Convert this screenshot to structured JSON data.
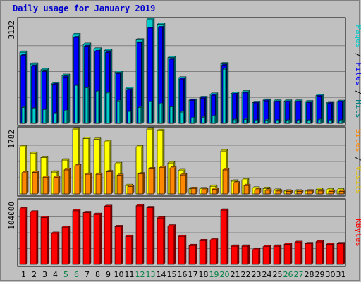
{
  "title": "Daily usage for January 2019",
  "colors": {
    "hits": "#00cccc",
    "files": "#0000ff",
    "pages": "#00cccc",
    "visits": "#ffff00",
    "sites": "#ff8800",
    "kbytes": "#ff0000",
    "weekend_tick": "#008040",
    "weekday_tick": "#000000",
    "panel_bg": "#c0c0c0",
    "grid": "#808080"
  },
  "chart_data": [
    {
      "type": "bar",
      "name": "hits-files-pages",
      "categories": [
        "1",
        "2",
        "3",
        "4",
        "5",
        "6",
        "7",
        "8",
        "9",
        "10",
        "11",
        "12",
        "13",
        "14",
        "15",
        "16",
        "17",
        "18",
        "19",
        "20",
        "21",
        "22",
        "23",
        "24",
        "25",
        "26",
        "27",
        "28",
        "29",
        "30",
        "31"
      ],
      "weekend_days": [
        "5",
        "6",
        "12",
        "13",
        "19",
        "20",
        "26",
        "27"
      ],
      "ymax_label": "3132",
      "ylim": [
        0,
        3132
      ],
      "series_labels": [
        "Pages",
        "Files",
        "Hits"
      ],
      "series": [
        {
          "name": "Hits",
          "values": [
            2150,
            1790,
            1620,
            1190,
            1450,
            2680,
            2390,
            2245,
            2200,
            1550,
            1050,
            2520,
            3132,
            2990,
            1990,
            1370,
            700,
            780,
            880,
            1800,
            900,
            950,
            630,
            700,
            670,
            670,
            670,
            650,
            840,
            620,
            660
          ]
        },
        {
          "name": "Files",
          "values": [
            2050,
            1730,
            1570,
            1180,
            1400,
            2600,
            2330,
            2180,
            2140,
            1500,
            1010,
            2440,
            2880,
            2900,
            1940,
            1340,
            690,
            760,
            850,
            1760,
            880,
            920,
            620,
            680,
            650,
            650,
            650,
            630,
            820,
            600,
            650
          ]
        },
        {
          "name": "Pages",
          "values": [
            480,
            450,
            420,
            300,
            380,
            1150,
            1080,
            960,
            920,
            680,
            360,
            480,
            650,
            590,
            500,
            340,
            160,
            180,
            220,
            1640,
            110,
            120,
            90,
            100,
            90,
            90,
            90,
            90,
            110,
            90,
            90
          ]
        }
      ],
      "grid": true
    },
    {
      "type": "bar",
      "name": "visits-sites",
      "categories": [
        "1",
        "2",
        "3",
        "4",
        "5",
        "6",
        "7",
        "8",
        "9",
        "10",
        "11",
        "12",
        "13",
        "14",
        "15",
        "16",
        "17",
        "18",
        "19",
        "20",
        "21",
        "22",
        "23",
        "24",
        "25",
        "26",
        "27",
        "28",
        "29",
        "30",
        "31"
      ],
      "ymax_label": "1782",
      "ylim": [
        0,
        1782
      ],
      "series_labels": [
        "Sites",
        "Visits"
      ],
      "series": [
        {
          "name": "Visits",
          "values": [
            1290,
            1120,
            1000,
            600,
            930,
            1782,
            1520,
            1500,
            1430,
            830,
            230,
            1290,
            1782,
            1740,
            850,
            640,
            140,
            140,
            210,
            1180,
            350,
            380,
            160,
            150,
            100,
            80,
            80,
            80,
            120,
            110,
            110
          ]
        },
        {
          "name": "Sites",
          "values": [
            580,
            590,
            460,
            450,
            660,
            770,
            540,
            540,
            610,
            510,
            200,
            550,
            690,
            720,
            710,
            520,
            150,
            110,
            130,
            660,
            300,
            230,
            110,
            100,
            80,
            70,
            70,
            80,
            80,
            70,
            70
          ]
        }
      ],
      "grid": true
    },
    {
      "type": "bar",
      "name": "kbytes",
      "categories": [
        "1",
        "2",
        "3",
        "4",
        "5",
        "6",
        "7",
        "8",
        "9",
        "10",
        "11",
        "12",
        "13",
        "14",
        "15",
        "16",
        "17",
        "18",
        "19",
        "20",
        "21",
        "22",
        "23",
        "24",
        "25",
        "26",
        "27",
        "28",
        "29",
        "30",
        "31"
      ],
      "ymax_label": "104000",
      "ylim": [
        0,
        104000
      ],
      "series_labels": [
        "KBytes"
      ],
      "series": [
        {
          "name": "KBytes",
          "values": [
            91000,
            86000,
            77000,
            51000,
            61000,
            88000,
            85000,
            82000,
            95000,
            62000,
            46000,
            96000,
            93000,
            76000,
            63000,
            46000,
            31000,
            39000,
            40000,
            89000,
            30000,
            30000,
            24000,
            29000,
            30000,
            33000,
            36000,
            34000,
            37000,
            33000,
            34000
          ]
        }
      ],
      "grid": true
    }
  ]
}
